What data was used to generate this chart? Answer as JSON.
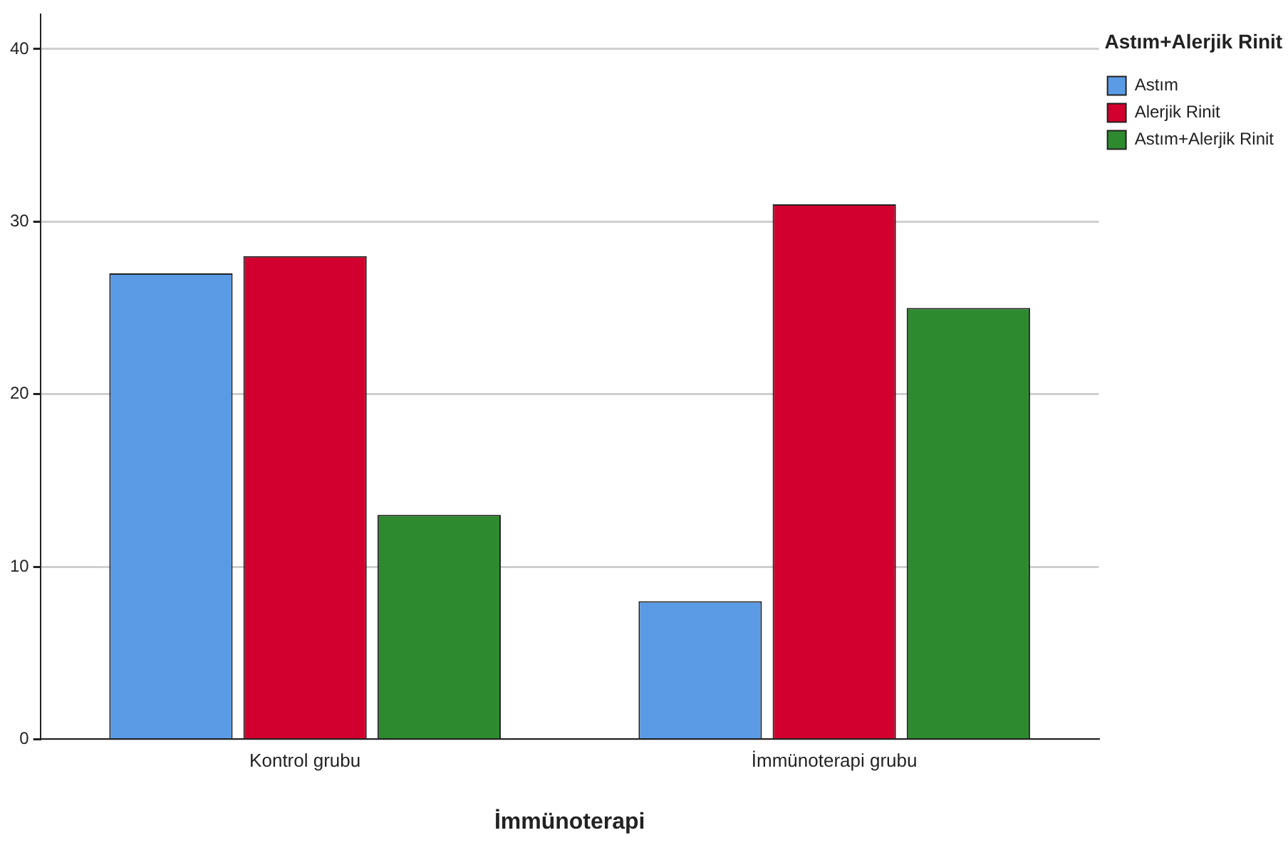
{
  "chart_data": {
    "type": "bar",
    "xlabel": "İmmünoterapi",
    "legend_title": "Astım+Alerjik Rinit",
    "categories": [
      "Kontrol grubu",
      "İmmünoterapi grubu"
    ],
    "series": [
      {
        "name": "Astım",
        "color": "#5b9be6",
        "values": [
          27,
          8
        ]
      },
      {
        "name": "Alerjik Rinit",
        "color": "#d2002e",
        "values": [
          28,
          31
        ]
      },
      {
        "name": "Astım+Alerjik Rinit",
        "color": "#2e8a2e",
        "values": [
          13,
          25
        ]
      }
    ],
    "ylim": [
      0,
      42
    ],
    "yticks": [
      0,
      10,
      20,
      30,
      40
    ],
    "grid": "y",
    "legend": "top right"
  }
}
